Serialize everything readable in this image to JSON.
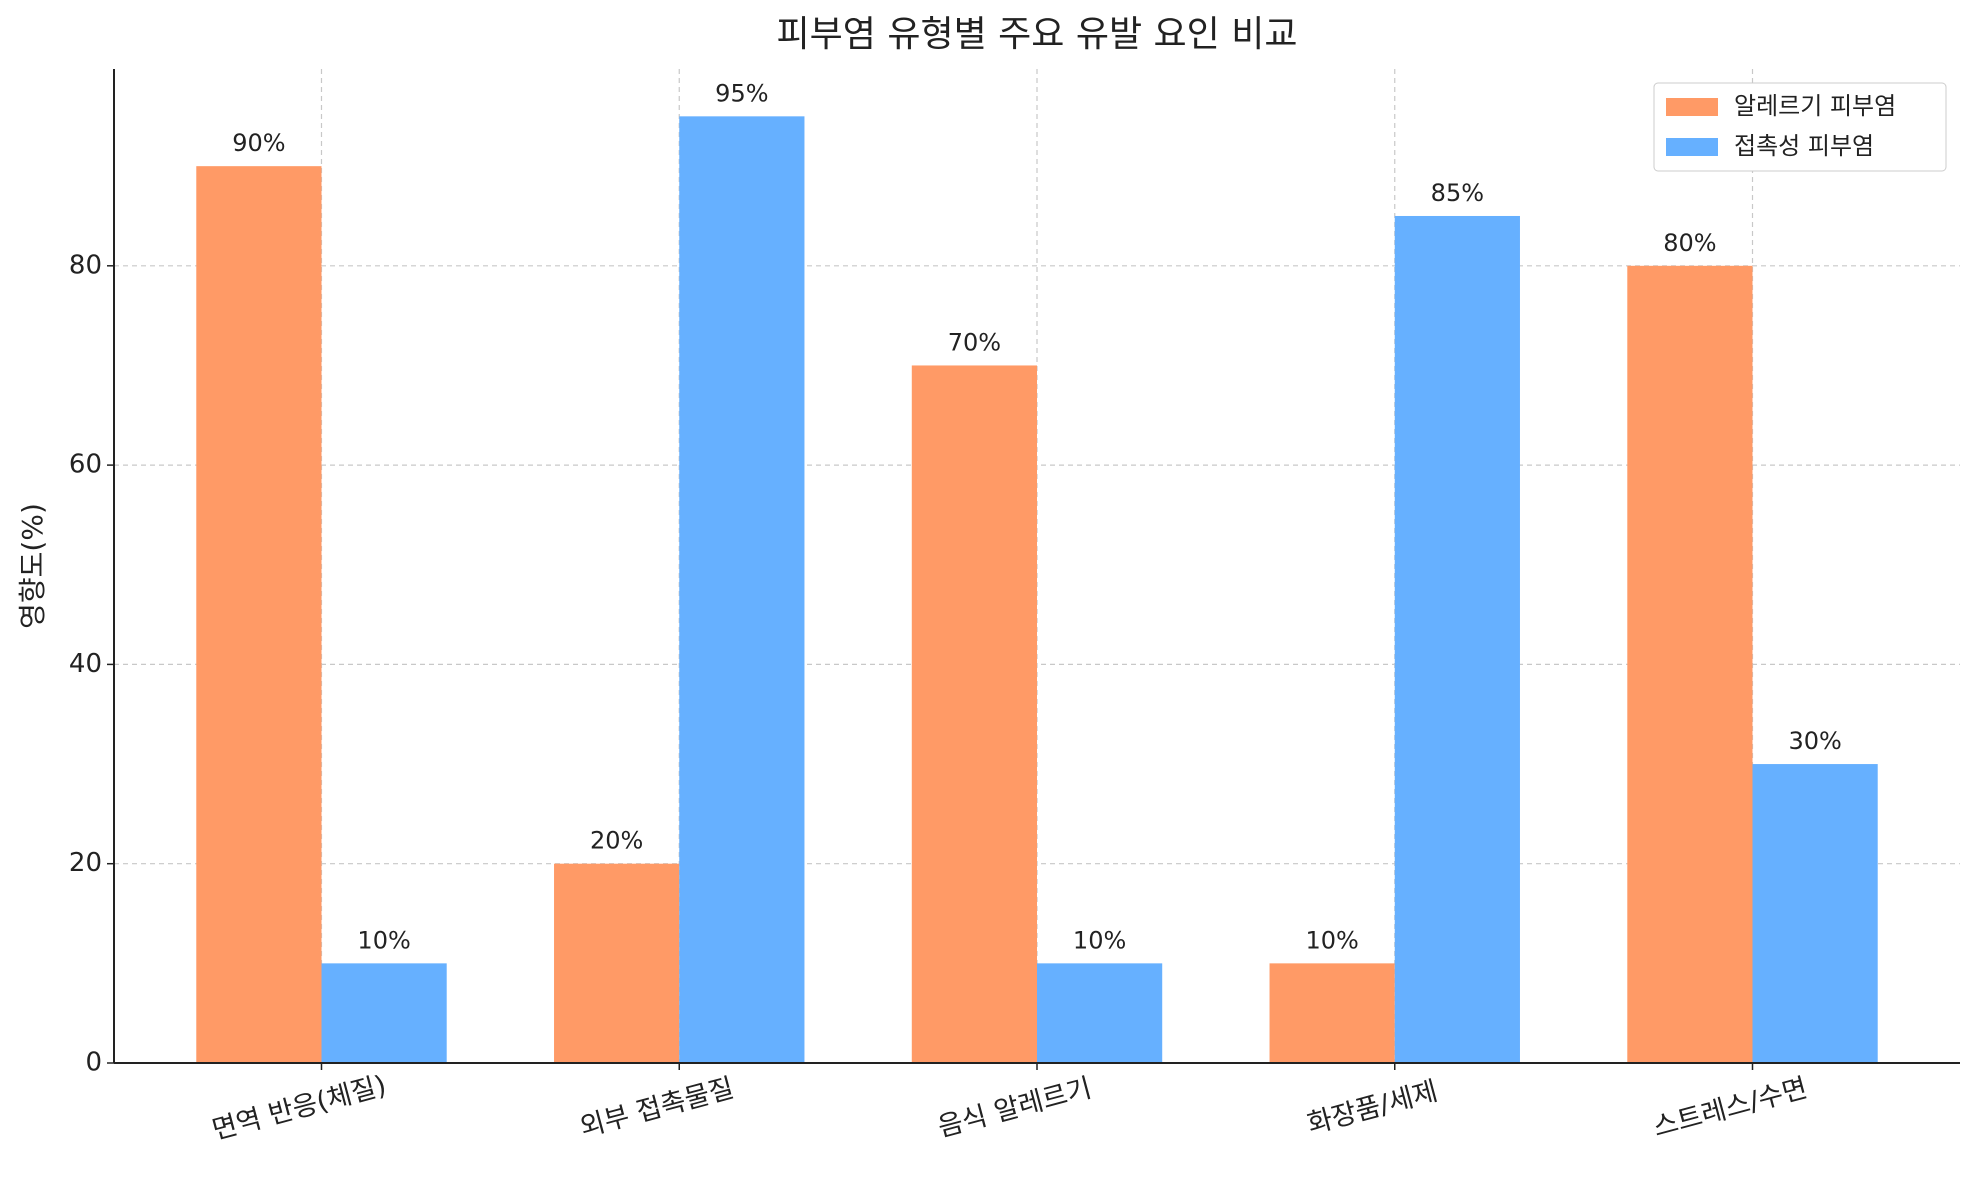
{
  "chart_data": {
    "type": "bar",
    "title": "피부염 유형별 주요 유발 요인 비교",
    "y_label": "영향도(%)",
    "categories": [
      "면역 반응(체질)",
      "외부 접촉물질",
      "음식 알레르기",
      "화장품/세제",
      "스트레스/수면"
    ],
    "series": [
      {
        "name": "알레르기 피부염",
        "color": "#ff9a66",
        "values": [
          90,
          20,
          70,
          10,
          80
        ],
        "value_labels": [
          "90%",
          "20%",
          "70%",
          "10%",
          "80%"
        ]
      },
      {
        "name": "접촉성 피부염",
        "color": "#66b0ff",
        "values": [
          10,
          95,
          10,
          85,
          30
        ],
        "value_labels": [
          "10%",
          "95%",
          "10%",
          "85%",
          "30%"
        ]
      }
    ],
    "ylim": [
      0,
      99.75
    ],
    "yticks": [
      0,
      20,
      40,
      60,
      80
    ],
    "grid": true,
    "legend": "upper right"
  }
}
